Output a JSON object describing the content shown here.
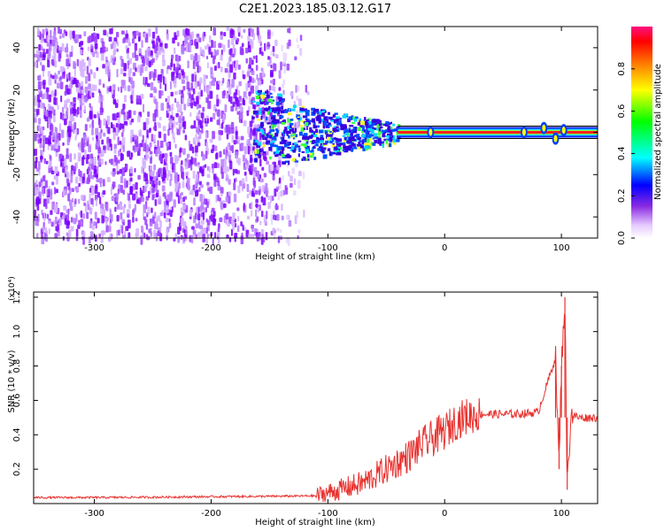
{
  "title": "C2E1.2023.185.03.12.G17",
  "colors": {
    "snr_line": "#e8322f",
    "scatter_purple": "#7a00ff",
    "axis": "#000000"
  },
  "chart_data": [
    {
      "type": "heatmap",
      "xlabel": "Height of straight line (km)",
      "ylabel": "Frequency (Hz)",
      "xlim": [
        -352,
        131
      ],
      "ylim": [
        -50,
        50
      ],
      "x_ticks": [
        -300,
        -200,
        -100,
        0,
        100
      ],
      "y_ticks": [
        -40,
        -20,
        0,
        20,
        40
      ],
      "colorbar": {
        "label": "Normalized spectral amplitude",
        "range": [
          0.0,
          1.0
        ],
        "ticks": [
          "0.0",
          "0.2",
          "0.4",
          "0.6",
          "0.8"
        ],
        "tick_values": [
          0.0,
          0.2,
          0.4,
          0.6,
          0.8
        ],
        "colormap": [
          "#ffffff",
          "#e6ccff",
          "#8a2be2",
          "#0000ff",
          "#00ffff",
          "#00ff00",
          "#ffff00",
          "#ff8000",
          "#ff0000",
          "#ff0080"
        ]
      },
      "regions": [
        {
          "x_range": [
            -352,
            -160
          ],
          "y_range": [
            -50,
            50
          ],
          "amplitude": 0.15,
          "pattern": "noise"
        },
        {
          "x_range": [
            -160,
            -115
          ],
          "y_range": [
            -50,
            50
          ],
          "amplitude": 0.08,
          "pattern": "sparse noise"
        },
        {
          "x_range": [
            -160,
            -40
          ],
          "y_range": [
            -12,
            14
          ],
          "amplitude": 0.4,
          "pattern": "broad signal"
        },
        {
          "x_range": [
            -40,
            131
          ],
          "y_range": [
            -2,
            2
          ],
          "amplitude": 0.9,
          "pattern": "narrow carrier"
        }
      ]
    },
    {
      "type": "line",
      "xlabel": "Height of straight line (km)",
      "ylabel": "SNR (10 * v/v)",
      "y_multiplier": "(x10⁴)",
      "xlim": [
        -352,
        131
      ],
      "ylim": [
        0,
        1.23
      ],
      "x_ticks": [
        -300,
        -200,
        -100,
        0,
        100
      ],
      "y_ticks": [
        0.2,
        0.4,
        0.6,
        0.8,
        1.0,
        1.2
      ],
      "series": [
        {
          "x": [
            -352,
            -300,
            -250,
            -200,
            -150,
            -110,
            -90,
            -70,
            -50,
            -30,
            -20,
            -10,
            0,
            10,
            20,
            30,
            40,
            60,
            80,
            95,
            98,
            100,
            103,
            105,
            108,
            115,
            131
          ],
          "y": [
            0.035,
            0.035,
            0.037,
            0.04,
            0.042,
            0.045,
            0.08,
            0.12,
            0.2,
            0.28,
            0.34,
            0.38,
            0.42,
            0.48,
            0.51,
            0.52,
            0.52,
            0.52,
            0.53,
            0.85,
            0.2,
            0.8,
            1.2,
            0.08,
            0.52,
            0.5,
            0.5
          ]
        }
      ],
      "annotations": [
        {
          "x": 98,
          "y": 0.93,
          "label": ""
        },
        {
          "x": 105,
          "y": 1.23,
          "label": ""
        }
      ]
    }
  ]
}
